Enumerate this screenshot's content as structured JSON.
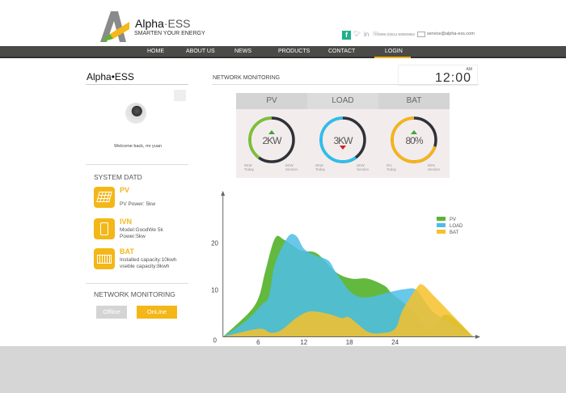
{
  "brand": {
    "name": "Alpha",
    "name_suffix": "ESS",
    "tagline": "SMARTEN YOUR ENERGY"
  },
  "contact": {
    "phone": "0086-(0)512-80900862",
    "email": "service@alpha-ess.com",
    "social": [
      "facebook-icon",
      "twitter-icon",
      "linkedin-icon"
    ]
  },
  "nav": {
    "items": [
      "HOME",
      "ABOUT US",
      "NEWS",
      "PRODUCTS",
      "CONTACT",
      "LOGIN"
    ],
    "active": "LOGIN"
  },
  "sidebar": {
    "logo": "Alpha•ESS",
    "welcome": "Welcome back, mr yuan",
    "system_title": "SYSTEM DATD",
    "items": [
      {
        "title": "PV",
        "lines": [
          "PV Power: 5kw"
        ]
      },
      {
        "title": "IVN",
        "lines": [
          "Model:GoodWe 5k",
          "Power:5kw"
        ]
      },
      {
        "title": "BAT",
        "lines": [
          "Installed capacity:10kwh",
          "vseble capacity:8kwh"
        ]
      }
    ],
    "monitor_title": "NETWORK MONITORING",
    "offline_label": "Offline",
    "online_label": "OnLine"
  },
  "main": {
    "title": "NETWORK MONITORING",
    "clock": {
      "time": "12:00",
      "ampm": "AM"
    },
    "gauges": [
      {
        "label": "PV",
        "value": "2KW",
        "trend": "up",
        "fraction": 0.4,
        "color": "#7cc235",
        "left_val": "0KW",
        "left_sub": "Today",
        "right_val": "5KW",
        "right_sub": "Section"
      },
      {
        "label": "LOAD",
        "value": "3KW",
        "trend": "down",
        "fraction": 0.6,
        "color": "#29c0f0",
        "left_val": "0KW",
        "left_sub": "Today",
        "right_val": "3KW",
        "right_sub": "Section"
      },
      {
        "label": "BAT",
        "value": "80%",
        "trend": "up",
        "fraction": 0.7,
        "color": "#f8b514",
        "left_val": "0%",
        "left_sub": "Today",
        "right_val": "80%",
        "right_sub": "Section"
      }
    ]
  },
  "chart_data": {
    "type": "area",
    "xticks": [
      6,
      12,
      18,
      24
    ],
    "yticks": [
      0,
      10,
      20
    ],
    "xlim": [
      0,
      35
    ],
    "ylim": [
      0,
      30
    ],
    "legend_position": "top-right",
    "series": [
      {
        "name": "PV",
        "color": "#5bb534",
        "points": [
          [
            1.35,
            0
          ],
          [
            4.8,
            5.2
          ],
          [
            6.1,
            8.6
          ],
          [
            6.9,
            13.8
          ],
          [
            8.2,
            21
          ],
          [
            9.4,
            20.7
          ],
          [
            11.6,
            18.4
          ],
          [
            13.7,
            17.8
          ],
          [
            16.2,
            13.8
          ],
          [
            18.3,
            12.4
          ],
          [
            20.4,
            12.4
          ],
          [
            22.6,
            10.9
          ],
          [
            23.6,
            9.2
          ],
          [
            25.4,
            6.9
          ],
          [
            26.8,
            4.6
          ],
          [
            28.2,
            1.4
          ],
          [
            29.6,
            3.4
          ],
          [
            31.1,
            4.6
          ],
          [
            34.3,
            0
          ]
        ]
      },
      {
        "name": "LOAD",
        "color": "#4fbde6",
        "points": [
          [
            1.35,
            0
          ],
          [
            4.4,
            3.4
          ],
          [
            6.5,
            6.9
          ],
          [
            7.4,
            8.6
          ],
          [
            8.2,
            15.5
          ],
          [
            9.9,
            21.3
          ],
          [
            11,
            21.5
          ],
          [
            12,
            18.8
          ],
          [
            13.4,
            17.4
          ],
          [
            15.2,
            16.3
          ],
          [
            16.2,
            13.8
          ],
          [
            18,
            9.8
          ],
          [
            19.4,
            8.5
          ],
          [
            21.1,
            8.6
          ],
          [
            23.2,
            9.5
          ],
          [
            25.4,
            10.2
          ],
          [
            26.8,
            10
          ],
          [
            28.2,
            6.9
          ],
          [
            29.6,
            4.6
          ],
          [
            34.3,
            0
          ]
        ]
      },
      {
        "name": "BAT",
        "color": "#f7c12a",
        "points": [
          [
            1.35,
            0
          ],
          [
            6,
            1.7
          ],
          [
            7.6,
            0.9
          ],
          [
            9,
            1.4
          ],
          [
            11,
            4
          ],
          [
            12.8,
            5.4
          ],
          [
            15.2,
            4.9
          ],
          [
            17,
            4
          ],
          [
            18,
            4.1
          ],
          [
            20.4,
            1.1
          ],
          [
            22.2,
            0.8
          ],
          [
            24,
            1.7
          ],
          [
            25,
            5.7
          ],
          [
            26.8,
            10.3
          ],
          [
            27.6,
            11.1
          ],
          [
            29.2,
            8.6
          ],
          [
            34.3,
            0
          ]
        ]
      }
    ]
  }
}
